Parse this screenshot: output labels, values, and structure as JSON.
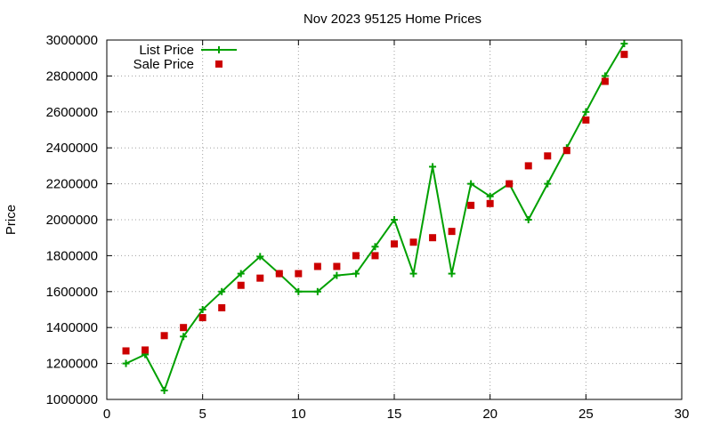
{
  "chart_data": {
    "type": "line",
    "title": "Nov 2023 95125 Home Prices",
    "xlabel": "",
    "ylabel": "Price",
    "xlim": [
      0,
      30
    ],
    "ylim": [
      1000000,
      3000000
    ],
    "x_ticks": [
      0,
      5,
      10,
      15,
      20,
      25,
      30
    ],
    "y_ticks": [
      1000000,
      1200000,
      1400000,
      1600000,
      1800000,
      2000000,
      2200000,
      2400000,
      2600000,
      2800000,
      3000000
    ],
    "grid": true,
    "legend_position": "top-left",
    "series": [
      {
        "name": "List Price",
        "style": "line-plus",
        "color": "#00a000",
        "x": [
          1,
          2,
          3,
          4,
          5,
          6,
          7,
          8,
          9,
          10,
          11,
          12,
          13,
          14,
          15,
          16,
          17,
          18,
          19,
          20,
          21,
          22,
          23,
          24,
          25,
          26,
          27
        ],
        "values": [
          1200000,
          1250000,
          1050000,
          1350000,
          1500000,
          1600000,
          1700000,
          1795000,
          1700000,
          1600000,
          1600000,
          1690000,
          1700000,
          1850000,
          2000000,
          1700000,
          2295000,
          1700000,
          2200000,
          2130000,
          2200000,
          2000000,
          2200000,
          2400000,
          2600000,
          2800000,
          2980000
        ]
      },
      {
        "name": "Sale Price",
        "style": "square",
        "color": "#cc0000",
        "x": [
          1,
          2,
          3,
          4,
          5,
          6,
          7,
          8,
          9,
          10,
          11,
          12,
          13,
          14,
          15,
          16,
          17,
          18,
          19,
          20,
          21,
          22,
          23,
          24,
          25,
          26,
          27
        ],
        "values": [
          1270000,
          1275000,
          1355000,
          1400000,
          1455000,
          1510000,
          1635000,
          1675000,
          1700000,
          1700000,
          1740000,
          1740000,
          1800000,
          1800000,
          1865000,
          1875000,
          1900000,
          1935000,
          2080000,
          2090000,
          2200000,
          2300000,
          2355000,
          2385000,
          2555000,
          2770000,
          2920000
        ]
      }
    ]
  }
}
